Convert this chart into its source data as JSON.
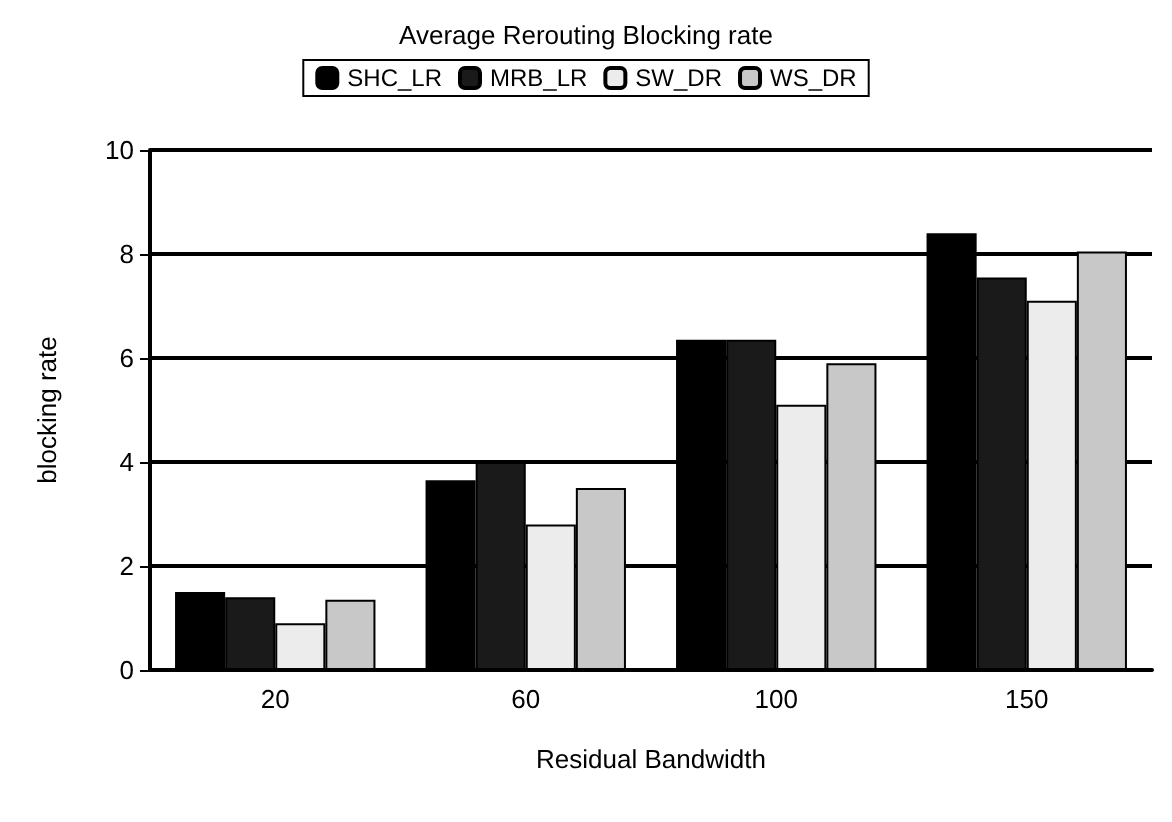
{
  "chart_data": {
    "type": "bar",
    "title": "Average Rerouting Blocking rate",
    "xlabel": "Residual Bandwidth",
    "ylabel": "blocking rate",
    "categories": [
      "20",
      "60",
      "100",
      "150"
    ],
    "series": [
      {
        "name": "SHC_LR",
        "color": "#000000",
        "values": [
          1.5,
          3.65,
          6.35,
          8.4
        ]
      },
      {
        "name": "MRB_LR",
        "color": "#1a1a1a",
        "values": [
          1.4,
          4.0,
          6.35,
          7.55
        ]
      },
      {
        "name": "SW_DR",
        "color": "#ececec",
        "values": [
          0.9,
          2.8,
          5.1,
          7.1
        ]
      },
      {
        "name": "WS_DR",
        "color": "#c8c8c8",
        "values": [
          1.35,
          3.5,
          5.9,
          8.05
        ]
      }
    ],
    "ylim": [
      0,
      10
    ],
    "yticks": [
      0,
      2,
      4,
      6,
      8,
      10
    ],
    "grid": "y",
    "legend": "top"
  }
}
